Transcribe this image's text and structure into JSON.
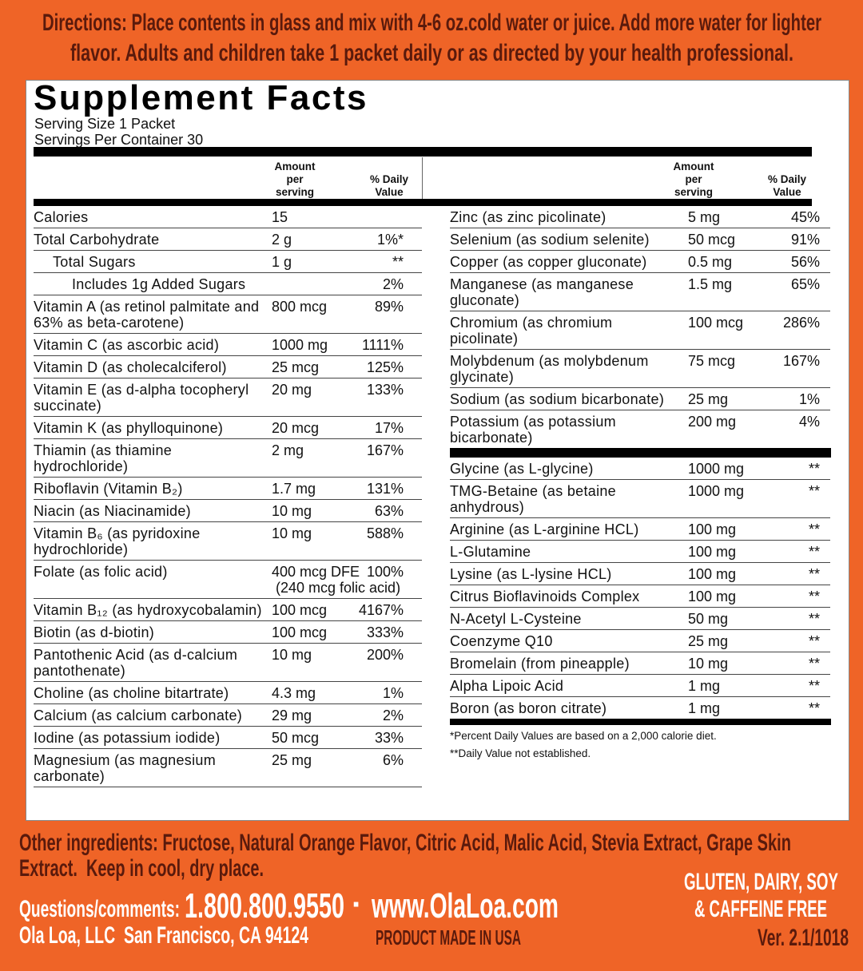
{
  "directions": [
    "Directions: Place contents in glass and mix with 4-6 oz.cold water or juice. Add more water for lighter",
    "flavor. Adults and children take 1 packet daily or as directed by your health professional."
  ],
  "facts": {
    "title": "Supplement Facts",
    "serving_size": "Serving Size 1 Packet",
    "servings_per_container": "Servings Per Container 30",
    "header": {
      "amount": "Amount per serving",
      "daily_value": "% Daily Value"
    },
    "left_rows": [
      {
        "name": "Calories",
        "amount": "15"
      },
      {
        "name": "Total Carbohydrate",
        "amount": "2 g",
        "dv": "1%*"
      },
      {
        "name": "Total Sugars",
        "amount": "1 g",
        "dv": "**"
      },
      {
        "name": "Includes 1g Added Sugars",
        "dv": "2%"
      },
      {
        "name": "Vitamin A (as retinol palmitate and 63% as beta-carotene)",
        "amount": "800 mcg",
        "dv": "89%"
      },
      {
        "name": "Vitamin C (as ascorbic acid)",
        "amount": "1000 mg",
        "dv": "1111%"
      },
      {
        "name": "Vitamin D (as cholecalciferol)",
        "amount": "25 mcg",
        "dv": "125%"
      },
      {
        "name": "Vitamin E (as d-alpha tocopheryl succinate)",
        "amount": "20 mg",
        "dv": "133%"
      },
      {
        "name": "Vitamin K (as phylloquinone)",
        "amount": "20 mcg",
        "dv": "17%"
      },
      {
        "name": "Thiamin (as thiamine hydrochloride)",
        "amount": "2 mg",
        "dv": "167%"
      },
      {
        "name": "Riboflavin (Vitamin B₂)",
        "amount": "1.7 mg",
        "dv": "131%"
      },
      {
        "name": "Niacin (as Niacinamide)",
        "amount": "10 mg",
        "dv": "63%"
      },
      {
        "name": "Vitamin B₆ (as pyridoxine hydrochloride)",
        "amount": "10 mg",
        "dv": "588%"
      },
      {
        "name": "Folate (as folic acid)",
        "amount": "400 mcg DFE",
        "dv": "100%",
        "amount_note": "(240 mcg folic acid)"
      },
      {
        "name": "Vitamin B₁₂ (as hydroxycobalamin)",
        "amount": "100 mcg",
        "dv": "4167%"
      },
      {
        "name": "Biotin (as d-biotin)",
        "amount": "100 mcg",
        "dv": "333%"
      },
      {
        "name": "Pantothenic Acid (as d-calcium pantothenate)",
        "amount": "10 mg",
        "dv": "200%"
      },
      {
        "name": "Choline (as choline bitartrate)",
        "amount": "4.3 mg",
        "dv": "1%"
      },
      {
        "name": "Calcium (as calcium carbonate)",
        "amount": "29 mg",
        "dv": "2%"
      },
      {
        "name": "Iodine (as potassium iodide)",
        "amount": "50 mcg",
        "dv": "33%"
      },
      {
        "name": "Magnesium (as magnesium carbonate)",
        "amount": "25 mg",
        "dv": "6%"
      }
    ],
    "right_rows": [
      {
        "name": "Zinc (as zinc picolinate)",
        "amount": "5 mg",
        "dv": "45%"
      },
      {
        "name": "Selenium (as sodium selenite)",
        "amount": "50 mcg",
        "dv": "91%"
      },
      {
        "name": "Copper (as copper gluconate)",
        "amount": "0.5 mg",
        "dv": "56%"
      },
      {
        "name": "Manganese (as manganese gluconate)",
        "amount": "1.5 mg",
        "dv": "65%"
      },
      {
        "name": "Chromium (as chromium picolinate)",
        "amount": "100 mcg",
        "dv": "286%"
      },
      {
        "name": "Molybdenum (as molybdenum glycinate)",
        "amount": "75 mcg",
        "dv": "167%"
      },
      {
        "name": "Sodium (as sodium bicarbonate)",
        "amount": "25 mg",
        "dv": "1%"
      },
      {
        "name": "Potassium (as potassium bicarbonate)",
        "amount": "200 mg",
        "dv": "4%"
      }
    ],
    "other_rows": [
      {
        "name": "Glycine (as L-glycine)",
        "amount": "1000 mg",
        "dv": "**"
      },
      {
        "name": "TMG-Betaine (as betaine anhydrous)",
        "amount": "1000 mg",
        "dv": "**"
      },
      {
        "name": "Arginine (as L-arginine HCL)",
        "amount": "100 mg",
        "dv": "**"
      },
      {
        "name": "L-Glutamine",
        "amount": "100 mg",
        "dv": "**"
      },
      {
        "name": "Lysine (as L-lysine HCL)",
        "amount": "100 mg",
        "dv": "**"
      },
      {
        "name": "Citrus Bioflavinoids Complex",
        "amount": "100 mg",
        "dv": "**"
      },
      {
        "name": "N-Acetyl L-Cysteine",
        "amount": "50 mg",
        "dv": "**"
      },
      {
        "name": "Coenzyme Q10",
        "amount": "25 mg",
        "dv": "**"
      },
      {
        "name": "Bromelain (from pineapple)",
        "amount": "10 mg",
        "dv": "**"
      },
      {
        "name": "Alpha Lipoic Acid",
        "amount": "1 mg",
        "dv": "**"
      },
      {
        "name": "Boron (as boron citrate)",
        "amount": "1 mg",
        "dv": "**"
      }
    ],
    "footnotes": [
      "*Percent Daily Values are based on a 2,000 calorie diet.",
      "**Daily Value not established."
    ]
  },
  "other_ingredients": [
    "Other ingredients: Fructose, Natural Orange Flavor, Citric Acid, Malic Acid, Stevia Extract, Grape Skin",
    "Extract.  Keep in cool, dry place."
  ],
  "contact": {
    "label": "Questions/comments:",
    "phone": "1.800.800.9550",
    "separator": "·",
    "website": "www.OlaLoa.com",
    "company": "Ola Loa, LLC  San Francisco, CA 94124"
  },
  "made_in": "PRODUCT MADE IN USA",
  "free_from": [
    "GLUTEN, DAIRY, SOY",
    "& CAFFEINE FREE"
  ],
  "version": "Ver. 2.1/1018"
}
